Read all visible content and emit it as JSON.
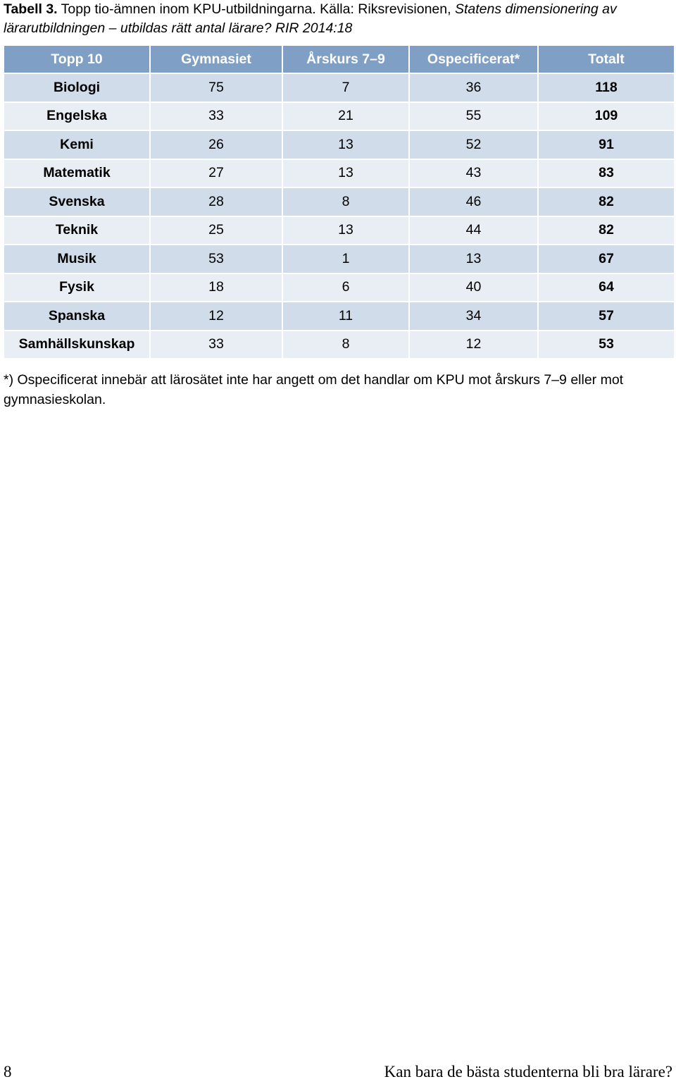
{
  "caption": {
    "label": "Tabell 3.",
    "text_before": " Topp tio-ämnen inom KPU-utbildningarna. Källa: Riksrevisionen, ",
    "italic": "Statens dimensionering av lärarutbildningen – utbildas rätt antal lärare? RIR 2014:18"
  },
  "table": {
    "headers": [
      "Topp 10",
      "Gymnasiet",
      "Årskurs 7–9",
      "Ospecificerat*",
      "Totalt"
    ],
    "rows": [
      {
        "subject": "Biologi",
        "gymnasiet": "75",
        "arskurs": "7",
        "ospec": "36",
        "totalt": "118"
      },
      {
        "subject": "Engelska",
        "gymnasiet": "33",
        "arskurs": "21",
        "ospec": "55",
        "totalt": "109"
      },
      {
        "subject": "Kemi",
        "gymnasiet": "26",
        "arskurs": "13",
        "ospec": "52",
        "totalt": "91"
      },
      {
        "subject": "Matematik",
        "gymnasiet": "27",
        "arskurs": "13",
        "ospec": "43",
        "totalt": "83"
      },
      {
        "subject": "Svenska",
        "gymnasiet": "28",
        "arskurs": "8",
        "ospec": "46",
        "totalt": "82"
      },
      {
        "subject": "Teknik",
        "gymnasiet": "25",
        "arskurs": "13",
        "ospec": "44",
        "totalt": "82"
      },
      {
        "subject": "Musik",
        "gymnasiet": "53",
        "arskurs": "1",
        "ospec": "13",
        "totalt": "67"
      },
      {
        "subject": "Fysik",
        "gymnasiet": "18",
        "arskurs": "6",
        "ospec": "40",
        "totalt": "64"
      },
      {
        "subject": "Spanska",
        "gymnasiet": "12",
        "arskurs": "11",
        "ospec": "34",
        "totalt": "57"
      },
      {
        "subject": "Samhällskunskap",
        "gymnasiet": "33",
        "arskurs": "8",
        "ospec": "12",
        "totalt": "53"
      }
    ]
  },
  "footnote": "*) Ospecificerat innebär att lärosätet inte har angett om det handlar om KPU mot årskurs 7–9 eller mot gymnasieskolan.",
  "footer": {
    "page_number": "8",
    "title": "Kan bara de bästa studenterna bli bra lärare?"
  },
  "colors": {
    "header_bg": "#7f9fc4",
    "row_odd_bg": "#d0dcea",
    "row_even_bg": "#e9eef5"
  }
}
